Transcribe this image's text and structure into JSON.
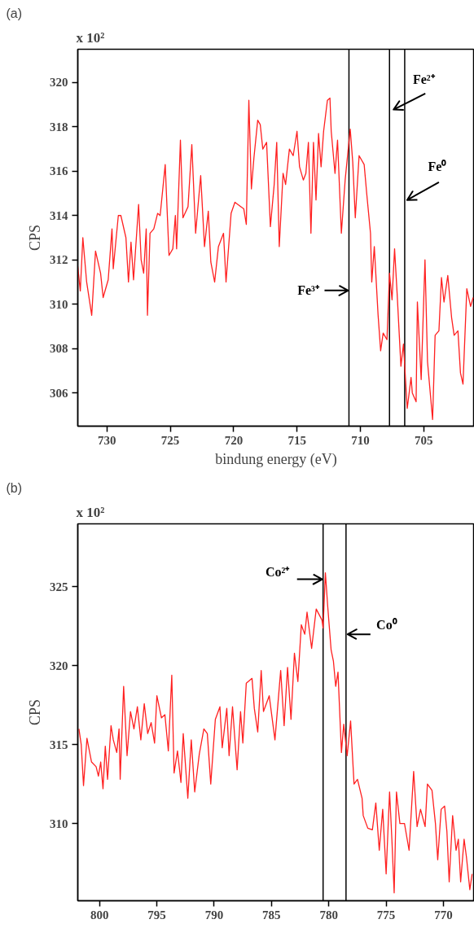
{
  "chart_data": [
    {
      "type": "line",
      "title": "(a)",
      "xlabel": "bindung energy (eV)",
      "ylabel": "CPS",
      "xlim": [
        732.3,
        701.0
      ],
      "ylim": [
        304.5,
        321.5
      ],
      "xticks": [
        730,
        725,
        720,
        715,
        710,
        705
      ],
      "yticks": [
        306,
        308,
        310,
        312,
        314,
        316,
        318,
        320
      ],
      "grid": false,
      "marker": "none",
      "line_style": "solid",
      "annotations": [
        "x 10²"
      ],
      "ref_lines": [
        {
          "axis": "x",
          "value": 710.9,
          "color": "#000000",
          "label": "Fe³⁺"
        },
        {
          "axis": "x",
          "value": 707.7,
          "color": "#000000",
          "label": "Fe²⁺"
        },
        {
          "axis": "x",
          "value": 706.5,
          "color": "#000000",
          "label": "Fe⁰"
        }
      ],
      "series": [
        {
          "color": "#ff2020",
          "x": [
            732.3,
            732.1,
            731.9,
            731.6,
            731.2,
            730.9,
            730.5,
            730.3,
            729.9,
            729.6,
            729.5,
            729.1,
            728.9,
            728.5,
            728.3,
            728.1,
            727.9,
            727.5,
            727.3,
            727.1,
            726.9,
            726.8,
            726.6,
            726.3,
            726.0,
            725.8,
            725.4,
            725.1,
            724.8,
            724.6,
            724.5,
            724.2,
            724.0,
            723.6,
            723.3,
            723.0,
            722.6,
            722.3,
            722.0,
            721.8,
            721.5,
            721.2,
            720.8,
            720.6,
            720.2,
            719.9,
            719.2,
            719.0,
            718.8,
            718.6,
            718.4,
            718.1,
            717.9,
            717.7,
            717.4,
            717.1,
            716.8,
            716.6,
            716.4,
            716.1,
            715.9,
            715.6,
            715.3,
            715.0,
            714.8,
            714.5,
            714.3,
            714.1,
            713.9,
            713.7,
            713.5,
            713.3,
            713.1,
            712.9,
            712.6,
            712.4,
            712.3,
            712.0,
            711.8,
            711.5,
            711.2,
            710.8,
            710.6,
            710.4,
            710.1,
            709.7,
            709.5,
            709.2,
            709.1,
            708.9,
            708.6,
            708.4,
            708.2,
            707.9,
            707.7,
            707.5,
            707.3,
            707.1,
            706.8,
            706.6,
            706.3,
            706.0,
            705.9,
            705.6,
            705.5,
            705.2,
            704.9,
            704.7,
            704.3,
            704.1,
            703.8,
            703.6,
            703.4,
            703.1,
            702.8,
            702.6,
            702.3,
            702.1,
            701.9,
            701.6,
            701.3,
            701.1
          ],
          "values": [
            311.7,
            310.6,
            313.0,
            311.0,
            309.5,
            312.4,
            311.4,
            310.3,
            311.1,
            313.4,
            311.6,
            314.0,
            314.0,
            313.0,
            311.0,
            312.8,
            311.1,
            314.5,
            312.0,
            311.4,
            313.4,
            309.5,
            313.2,
            313.4,
            314.1,
            314.0,
            316.3,
            312.2,
            312.5,
            314.0,
            312.5,
            317.4,
            313.9,
            314.4,
            317.2,
            313.2,
            315.8,
            312.6,
            314.2,
            311.9,
            311.0,
            312.6,
            313.2,
            311.0,
            314.1,
            314.6,
            314.3,
            313.6,
            319.2,
            315.2,
            316.6,
            318.3,
            318.1,
            317.0,
            317.3,
            313.5,
            315.4,
            317.3,
            312.6,
            315.9,
            315.4,
            317.0,
            316.7,
            317.8,
            316.2,
            315.6,
            315.9,
            317.3,
            313.2,
            317.3,
            314.7,
            317.7,
            316.2,
            317.8,
            319.2,
            319.3,
            317.8,
            315.9,
            317.4,
            313.2,
            315.6,
            317.9,
            316.4,
            313.9,
            316.7,
            316.3,
            315.0,
            313.2,
            311.0,
            312.6,
            309.5,
            307.9,
            308.7,
            308.4,
            311.4,
            310.2,
            312.5,
            310.5,
            307.2,
            308.2,
            305.3,
            306.7,
            306.0,
            305.6,
            310.1,
            306.6,
            312.0,
            307.4,
            304.8,
            308.6,
            308.8,
            311.2,
            310.1,
            311.3,
            309.4,
            308.6,
            308.8,
            306.9,
            306.4,
            310.7,
            309.9,
            310.3
          ]
        }
      ]
    },
    {
      "type": "line",
      "title": "(b)",
      "ylabel": "CPS",
      "xlim": [
        801.9,
        767.3
      ],
      "ylim": [
        305.1,
        329.0
      ],
      "xticks": [
        800,
        795,
        790,
        785,
        780,
        775,
        770
      ],
      "yticks": [
        310,
        315,
        320,
        325
      ],
      "grid": false,
      "marker": "none",
      "line_style": "solid",
      "annotations": [
        "x 10²"
      ],
      "ref_lines": [
        {
          "axis": "x",
          "value": 780.5,
          "color": "#000000",
          "label": "Co²⁺"
        },
        {
          "axis": "x",
          "value": 778.5,
          "color": "#000000",
          "label": "Co⁰"
        }
      ],
      "series": [
        {
          "color": "#ff2020",
          "x": [
            801.8,
            801.6,
            801.4,
            801.1,
            800.7,
            800.3,
            800.1,
            799.9,
            799.7,
            799.5,
            799.3,
            799.0,
            798.8,
            798.5,
            798.3,
            798.2,
            797.9,
            797.6,
            797.3,
            797.0,
            796.7,
            796.4,
            796.1,
            795.8,
            795.5,
            795.2,
            795.0,
            794.6,
            794.3,
            794.0,
            793.7,
            793.5,
            793.2,
            792.9,
            792.7,
            792.3,
            792.0,
            791.7,
            791.3,
            790.9,
            790.6,
            790.3,
            789.9,
            789.5,
            789.3,
            788.9,
            788.7,
            788.4,
            788.0,
            787.7,
            787.5,
            787.2,
            786.7,
            786.5,
            786.2,
            785.9,
            785.7,
            785.2,
            784.7,
            784.2,
            783.9,
            783.6,
            783.3,
            783.0,
            782.7,
            782.4,
            782.1,
            781.9,
            781.5,
            781.1,
            780.6,
            780.5,
            780.3,
            780.1,
            779.8,
            779.6,
            779.4,
            779.2,
            778.9,
            778.7,
            778.4,
            778.1,
            777.8,
            777.5,
            777.1,
            777.0,
            776.6,
            776.2,
            775.9,
            775.6,
            775.3,
            775.0,
            774.7,
            774.5,
            774.3,
            774.1,
            773.8,
            773.4,
            773.0,
            772.6,
            772.3,
            772.0,
            771.6,
            771.4,
            771.0,
            770.7,
            770.5,
            770.2,
            769.9,
            769.7,
            769.5,
            769.2,
            768.9,
            768.7,
            768.5,
            768.2,
            768.0,
            767.7,
            767.5
          ],
          "values": [
            316.0,
            315.0,
            312.4,
            315.4,
            313.9,
            313.6,
            313.0,
            313.9,
            312.2,
            314.9,
            312.8,
            316.2,
            315.3,
            314.5,
            316.0,
            312.8,
            318.7,
            314.3,
            317.1,
            316.0,
            317.4,
            315.3,
            317.6,
            315.7,
            316.4,
            315.1,
            318.1,
            316.7,
            316.9,
            314.6,
            319.4,
            313.2,
            314.6,
            312.6,
            315.7,
            311.6,
            315.3,
            312.0,
            314.4,
            316.0,
            315.7,
            312.5,
            316.6,
            317.4,
            314.8,
            317.3,
            314.3,
            317.4,
            313.4,
            317.1,
            315.1,
            318.9,
            319.2,
            317.3,
            315.8,
            319.7,
            317.1,
            318.1,
            315.3,
            319.7,
            316.2,
            319.9,
            316.6,
            320.8,
            319.0,
            322.6,
            322.0,
            323.4,
            321.1,
            323.6,
            322.9,
            322.4,
            325.9,
            323.8,
            321.0,
            320.3,
            318.7,
            319.6,
            314.5,
            316.3,
            314.3,
            316.5,
            312.5,
            312.8,
            311.6,
            310.5,
            309.7,
            309.6,
            311.3,
            308.3,
            310.9,
            306.8,
            312.0,
            309.0,
            305.6,
            312.0,
            310.0,
            310.0,
            308.3,
            313.3,
            309.8,
            310.9,
            309.8,
            312.5,
            312.1,
            310.0,
            307.7,
            310.9,
            311.1,
            309.5,
            306.3,
            310.5,
            308.3,
            309.0,
            306.3,
            309.0,
            307.9,
            305.8,
            306.8
          ]
        }
      ]
    }
  ]
}
